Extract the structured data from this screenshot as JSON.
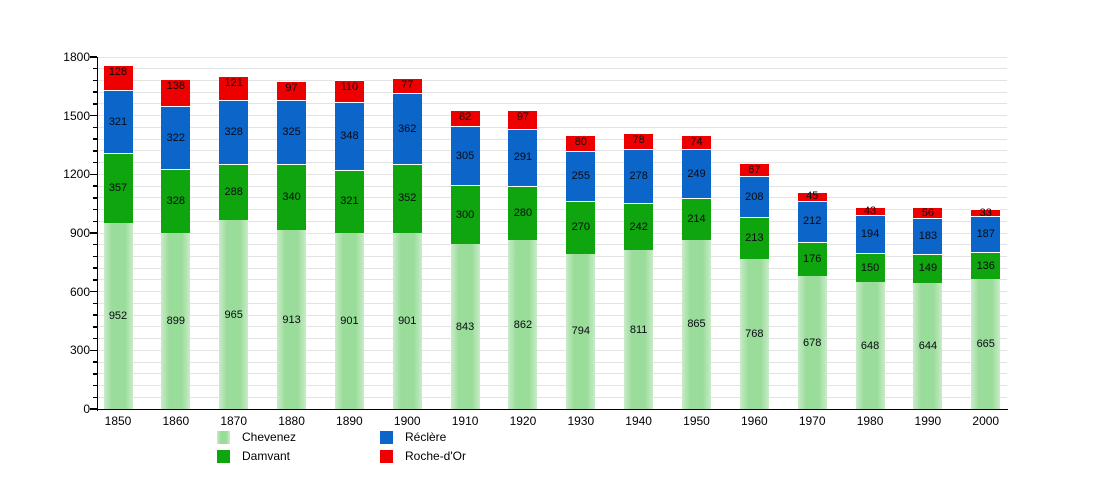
{
  "chart_data": {
    "type": "bar",
    "stacked": true,
    "title": "",
    "xlabel": "",
    "ylabel": "",
    "categories": [
      "1850",
      "1860",
      "1870",
      "1880",
      "1890",
      "1900",
      "1910",
      "1920",
      "1930",
      "1940",
      "1950",
      "1960",
      "1970",
      "1980",
      "1990",
      "2000"
    ],
    "series": [
      {
        "name": "Chevenez",
        "color": "#9adc9a",
        "values": [
          952,
          899,
          965,
          913,
          901,
          901,
          843,
          862,
          794,
          811,
          865,
          768,
          678,
          648,
          644,
          665
        ]
      },
      {
        "name": "Damvant",
        "color": "#0ea50e",
        "values": [
          357,
          328,
          288,
          340,
          321,
          352,
          300,
          280,
          270,
          242,
          214,
          213,
          176,
          150,
          149,
          136
        ]
      },
      {
        "name": "Réclère",
        "color": "#0c65c8",
        "values": [
          321,
          322,
          328,
          325,
          348,
          362,
          305,
          291,
          255,
          278,
          249,
          208,
          212,
          194,
          183,
          187
        ]
      },
      {
        "name": "Roche-d'Or",
        "color": "#ee0000",
        "values": [
          128,
          138,
          121,
          97,
          110,
          77,
          82,
          97,
          80,
          78,
          74,
          67,
          45,
          43,
          56,
          33
        ]
      }
    ],
    "ylim": [
      0,
      1800
    ],
    "yticks": [
      0,
      300,
      600,
      900,
      1200,
      1500,
      1800
    ],
    "minor_grid_step": 60,
    "grid": true,
    "bar_value_labels": true,
    "legend_position": "bottom",
    "colors": {
      "background": "#ffffff",
      "gridline": "#e3e3e3",
      "axis": "#000000",
      "label_text": "#0a0a12"
    }
  }
}
